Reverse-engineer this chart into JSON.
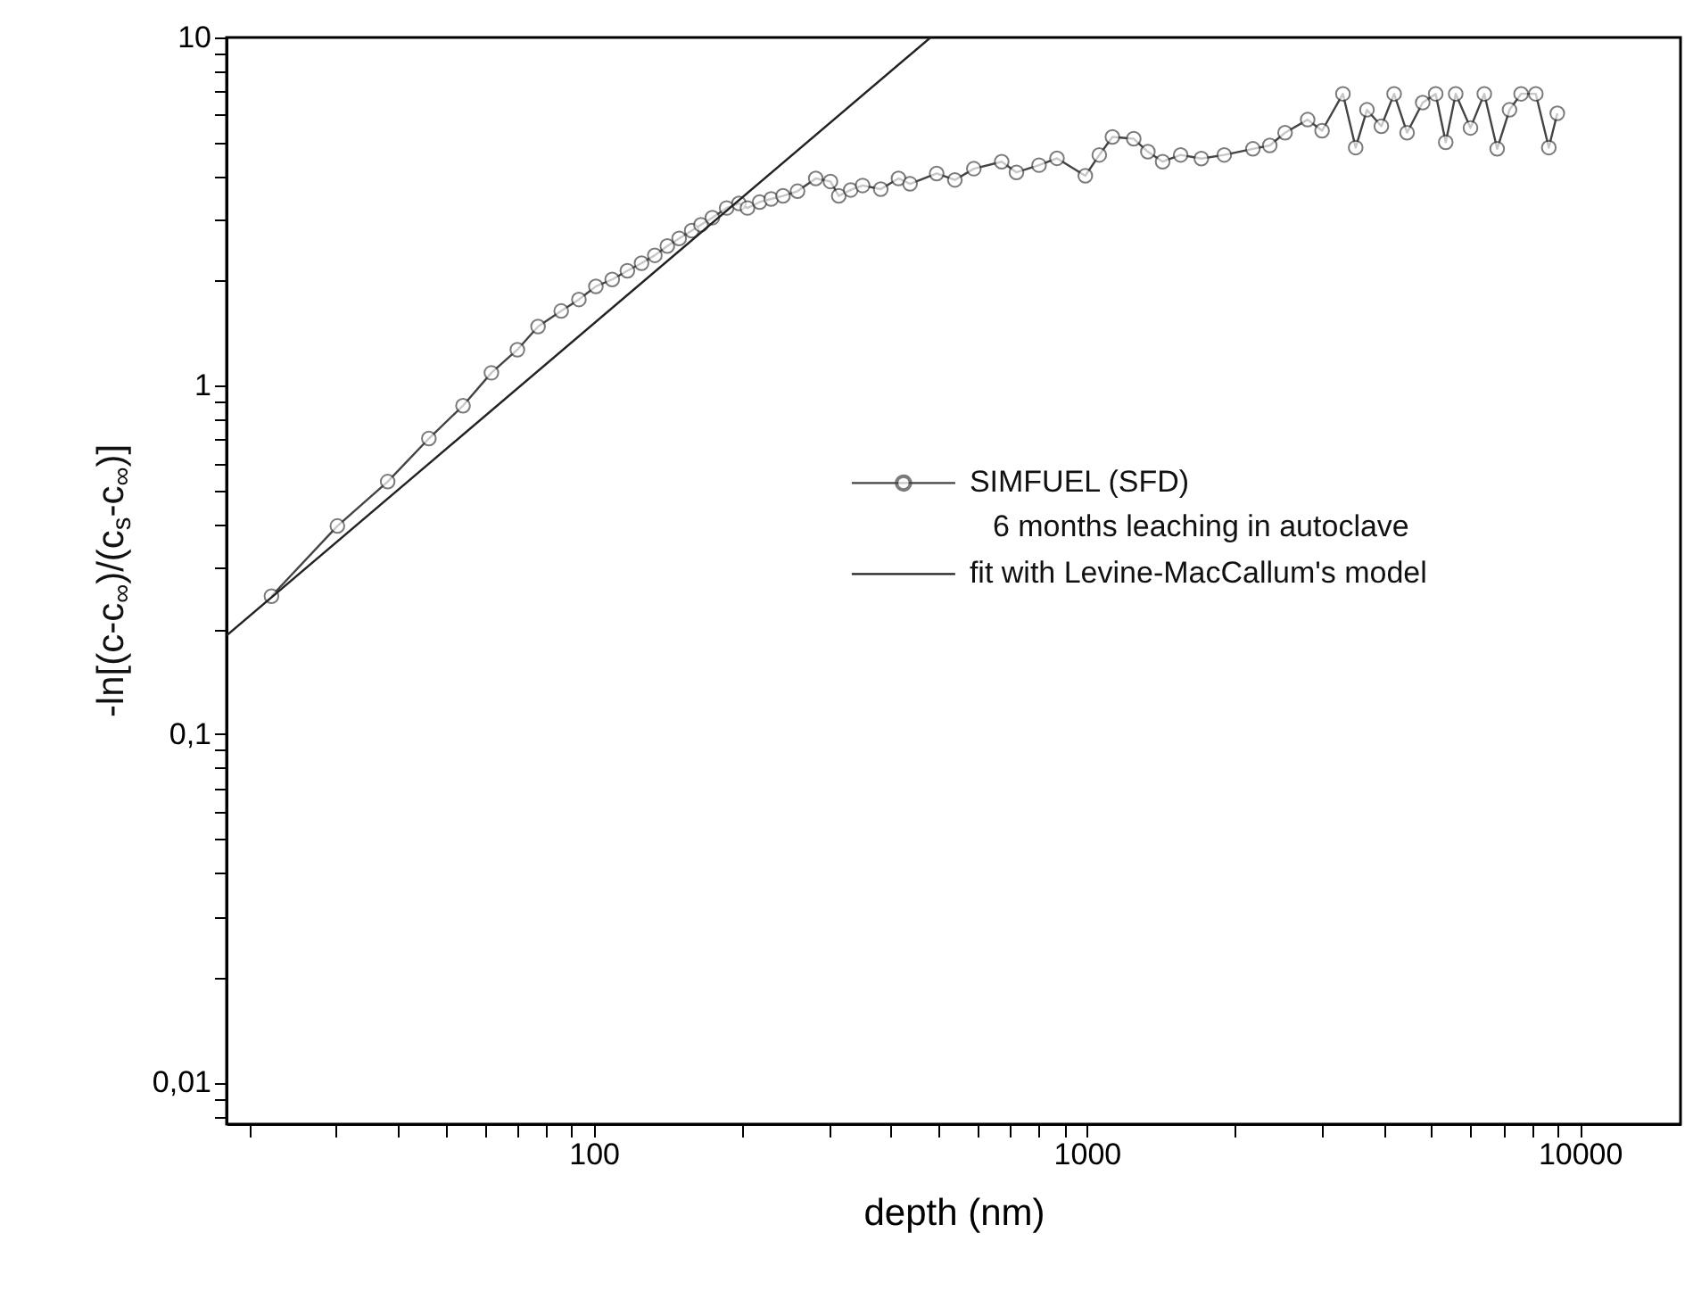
{
  "chart_data": {
    "type": "line",
    "xlabel": "depth (nm)",
    "ylabel": "-ln[(c-c$_{∞}$)/(c$_{s}$-c$_{∞}$)]",
    "log": "xy",
    "grid": false,
    "legend": "right",
    "xlim": [
      18,
      16000
    ],
    "ylim": [
      0.0076,
      10
    ],
    "xticks": [
      {
        "value": 20,
        "label": null
      },
      {
        "value": 30,
        "label": null
      },
      {
        "value": 40,
        "label": null
      },
      {
        "value": 50,
        "label": null
      },
      {
        "value": 60,
        "label": null
      },
      {
        "value": 70,
        "label": null
      },
      {
        "value": 80,
        "label": null
      },
      {
        "value": 90,
        "label": null
      },
      100,
      {
        "value": 200,
        "label": null
      },
      {
        "value": 300,
        "label": null
      },
      {
        "value": 400,
        "label": null
      },
      {
        "value": 500,
        "label": null
      },
      {
        "value": 600,
        "label": null
      },
      {
        "value": 700,
        "label": null
      },
      {
        "value": 800,
        "label": null
      },
      {
        "value": 900,
        "label": null
      },
      1000,
      {
        "value": 2000,
        "label": null
      },
      {
        "value": 3000,
        "label": null
      },
      {
        "value": 4000,
        "label": null
      },
      {
        "value": 5000,
        "label": null
      },
      {
        "value": 6000,
        "label": null
      },
      {
        "value": 7000,
        "label": null
      },
      {
        "value": 8000,
        "label": null
      },
      {
        "value": 9000,
        "label": null
      },
      10000
    ],
    "yticks": [
      {
        "value": 0.008,
        "label": null
      },
      {
        "value": 0.009,
        "label": null
      },
      {
        "value": 0.01,
        "label": "0,01"
      },
      {
        "value": 0.02,
        "label": null
      },
      {
        "value": 0.03,
        "label": null
      },
      {
        "value": 0.04,
        "label": null
      },
      {
        "value": 0.05,
        "label": null
      },
      {
        "value": 0.06,
        "label": null
      },
      {
        "value": 0.07,
        "label": null
      },
      {
        "value": 0.08,
        "label": null
      },
      {
        "value": 0.09,
        "label": null
      },
      {
        "value": 0.1,
        "label": "0,1"
      },
      {
        "value": 0.2,
        "label": null
      },
      {
        "value": 0.3,
        "label": null
      },
      {
        "value": 0.4,
        "label": null
      },
      {
        "value": 0.5,
        "label": null
      },
      {
        "value": 0.6,
        "label": null
      },
      {
        "value": 0.7,
        "label": null
      },
      {
        "value": 0.8,
        "label": null
      },
      {
        "value": 0.9,
        "label": null
      },
      1,
      {
        "value": 2,
        "label": null
      },
      {
        "value": 3,
        "label": null
      },
      {
        "value": 4,
        "label": null
      },
      {
        "value": 5,
        "label": null
      },
      {
        "value": 6,
        "label": null
      },
      {
        "value": 7,
        "label": null
      },
      {
        "value": 8,
        "label": null
      },
      {
        "value": 9,
        "label": null
      },
      10
    ],
    "series": [
      {
        "name": "SIMFUEL (SFD)\n6 months leaching in autoclave",
        "marker": "circle",
        "color": "#444444",
        "x": [
          22.2,
          30.2,
          38.2,
          46.3,
          54.3,
          62.0,
          70.0,
          77.1,
          85.9,
          93.3,
          101,
          109,
          117,
          125,
          133,
          141,
          149,
          158,
          165,
          174,
          186,
          197,
          205,
          217,
          229,
          242,
          259,
          282,
          302,
          314,
          332,
          351,
          382,
          415,
          438,
          496,
          540,
          590,
          672,
          720,
          800,
          870,
          993,
          1060,
          1127,
          1245,
          1330,
          1425,
          1550,
          1707,
          1900,
          2172,
          2350,
          2524,
          2805,
          3000,
          3307,
          3510,
          3700,
          3957,
          4200,
          4462,
          4800,
          5100,
          5345,
          5600,
          6000,
          6400,
          6796,
          7200,
          7600,
          8140,
          8650,
          9000
        ],
        "values": [
          0.249,
          0.396,
          0.531,
          0.706,
          0.877,
          1.09,
          1.27,
          1.48,
          1.64,
          1.77,
          1.93,
          2.02,
          2.14,
          2.25,
          2.37,
          2.52,
          2.65,
          2.79,
          2.9,
          3.04,
          3.24,
          3.34,
          3.24,
          3.37,
          3.44,
          3.51,
          3.62,
          3.94,
          3.86,
          3.51,
          3.65,
          3.76,
          3.67,
          3.94,
          3.8,
          4.07,
          3.9,
          4.2,
          4.4,
          4.1,
          4.3,
          4.5,
          4.01,
          4.6,
          5.18,
          5.12,
          4.7,
          4.4,
          4.6,
          4.49,
          4.6,
          4.79,
          4.9,
          5.33,
          5.81,
          5.4,
          6.89,
          4.83,
          6.2,
          5.56,
          6.89,
          5.33,
          6.5,
          6.89,
          5.0,
          6.89,
          5.5,
          6.89,
          4.79,
          6.2,
          6.89,
          6.89,
          4.83,
          6.06
        ]
      },
      {
        "name": "fit with Levine-MacCallum's model",
        "marker": "none",
        "color": "#222222",
        "x": [
          18.0,
          482
        ],
        "values": [
          0.192,
          10
        ]
      }
    ]
  }
}
